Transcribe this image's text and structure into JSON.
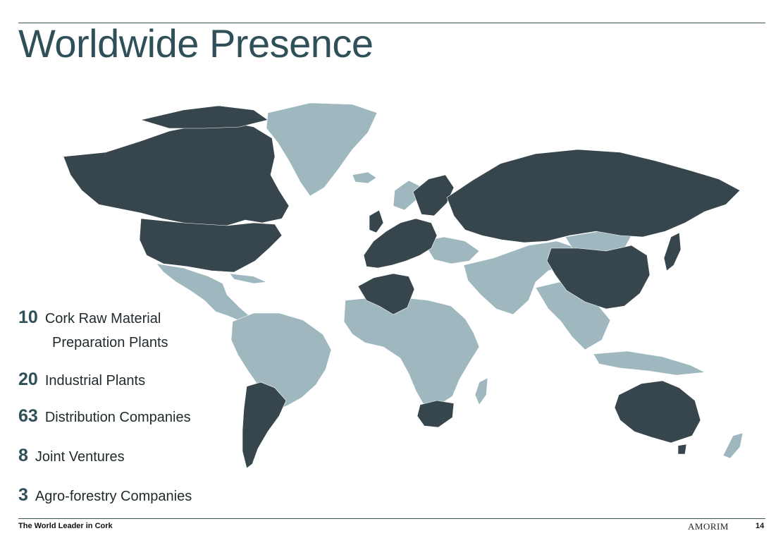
{
  "slide": {
    "title": "Worldwide Presence",
    "page_number": "14"
  },
  "stats": [
    {
      "number": "10",
      "label_line1": "Cork Raw Material",
      "label_line2": "Preparation Plants"
    },
    {
      "number": "20",
      "label_line1": "Industrial Plants"
    },
    {
      "number": "63",
      "label_line1": "Distribution Companies"
    },
    {
      "number": "8",
      "label_line1": "Joint Ventures"
    },
    {
      "number": "3",
      "label_line1": "Agro-forestry Companies"
    }
  ],
  "footer": {
    "tagline": "The World Leader in Cork",
    "brand": "AMORIM"
  },
  "map": {
    "colors": {
      "presence": "#36464c",
      "other": "#9fb8c0",
      "title": "#2f4f59"
    },
    "presence_regions": [
      "Canada",
      "United States",
      "Chile",
      "Argentina",
      "Portugal",
      "Spain",
      "France",
      "United Kingdom",
      "Germany",
      "Italy",
      "Scandinavia",
      "Poland",
      "Morocco",
      "Algeria",
      "Tunisia",
      "Russia",
      "China",
      "Japan",
      "South Africa",
      "Australia"
    ]
  }
}
